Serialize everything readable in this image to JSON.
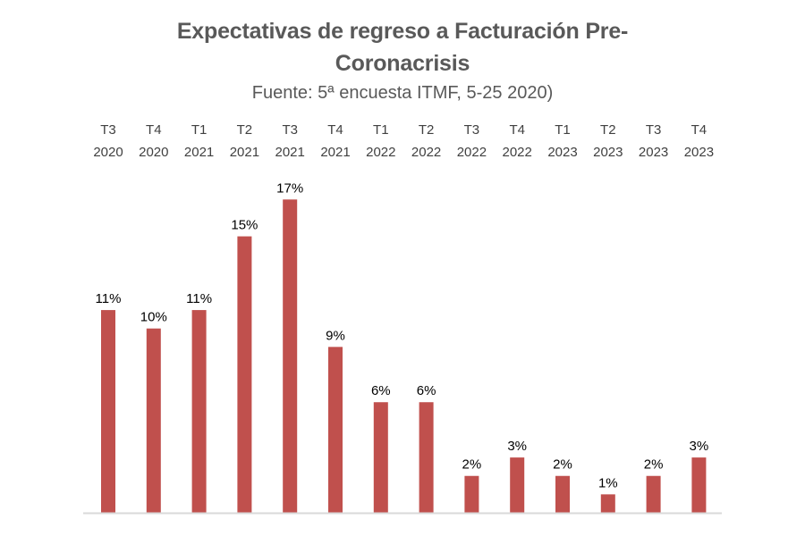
{
  "chart_data": {
    "type": "bar",
    "title_line1": "Expectativas de regreso a Facturación Pre-",
    "title_line2": "Coronacrisis",
    "subtitle": "Fuente: 5ª encuesta ITMF, 5-25 2020)",
    "categories": [
      {
        "quarter": "T3",
        "year": "2020"
      },
      {
        "quarter": "T4",
        "year": "2020"
      },
      {
        "quarter": "T1",
        "year": "2021"
      },
      {
        "quarter": "T2",
        "year": "2021"
      },
      {
        "quarter": "T3",
        "year": "2021"
      },
      {
        "quarter": "T4",
        "year": "2021"
      },
      {
        "quarter": "T1",
        "year": "2022"
      },
      {
        "quarter": "T2",
        "year": "2022"
      },
      {
        "quarter": "T3",
        "year": "2022"
      },
      {
        "quarter": "T4",
        "year": "2022"
      },
      {
        "quarter": "T1",
        "year": "2023"
      },
      {
        "quarter": "T2",
        "year": "2023"
      },
      {
        "quarter": "T3",
        "year": "2023"
      },
      {
        "quarter": "T4",
        "year": "2023"
      }
    ],
    "values": [
      11,
      10,
      11,
      15,
      17,
      9,
      6,
      6,
      2,
      3,
      2,
      1,
      2,
      3
    ],
    "value_labels": [
      "11%",
      "10%",
      "11%",
      "15%",
      "17%",
      "9%",
      "6%",
      "6%",
      "2%",
      "3%",
      "2%",
      "1%",
      "2%",
      "3%"
    ],
    "ylim": [
      0,
      17.5
    ],
    "xlabel": "",
    "ylabel": "",
    "category_axis_position": "top",
    "grid": false,
    "legend": "none",
    "colors": {
      "bar": "#C0504D",
      "title": "#595959",
      "label": "#000000",
      "tick": "#404040",
      "axis": "#D9D9D9"
    }
  }
}
